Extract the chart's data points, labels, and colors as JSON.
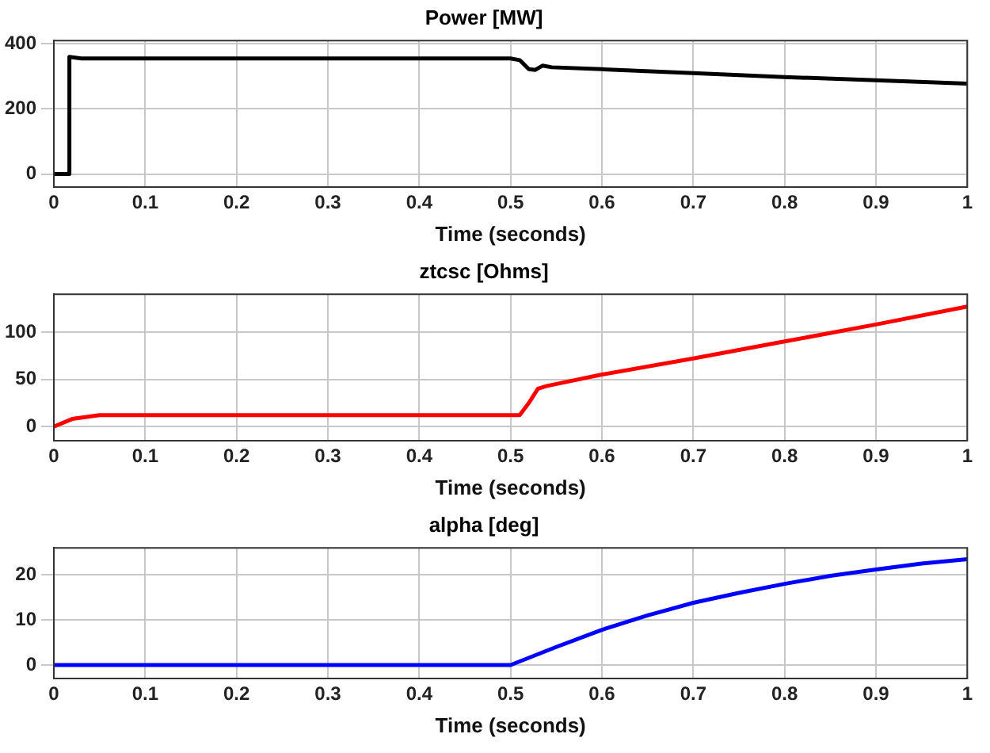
{
  "chart_data": [
    {
      "type": "line",
      "title": "Power [MW]",
      "xlabel": "Time (seconds)",
      "xlim": [
        0,
        1
      ],
      "xticks": [
        0,
        0.1,
        0.2,
        0.3,
        0.4,
        0.5,
        0.6,
        0.7,
        0.8,
        0.9,
        1
      ],
      "ylim": [
        -40,
        410
      ],
      "yticks": [
        0,
        200,
        400
      ],
      "grid": true,
      "marker": "none",
      "line_style": "solid",
      "series": [
        {
          "color": "#000000",
          "x": [
            0,
            0.016,
            0.017,
            0.03,
            0.5,
            0.51,
            0.52,
            0.527,
            0.535,
            0.545,
            0.6,
            0.7,
            0.8,
            0.9,
            1.0
          ],
          "values": [
            0,
            0,
            360,
            355,
            355,
            350,
            322,
            320,
            333,
            328,
            322,
            310,
            298,
            288,
            278
          ]
        }
      ]
    },
    {
      "type": "line",
      "title": "ztcsc [Ohms]",
      "xlabel": "Time (seconds)",
      "xlim": [
        0,
        1
      ],
      "xticks": [
        0,
        0.1,
        0.2,
        0.3,
        0.4,
        0.5,
        0.6,
        0.7,
        0.8,
        0.9,
        1
      ],
      "ylim": [
        -15,
        140
      ],
      "yticks": [
        0,
        50,
        100
      ],
      "grid": true,
      "marker": "none",
      "line_style": "solid",
      "series": [
        {
          "color": "#ff0000",
          "x": [
            0,
            0.02,
            0.05,
            0.5,
            0.51,
            0.52,
            0.53,
            0.54,
            0.6,
            0.7,
            0.8,
            0.9,
            1.0
          ],
          "values": [
            0,
            8,
            12,
            12,
            12,
            25,
            40,
            43,
            55,
            72,
            90,
            108,
            127
          ]
        }
      ]
    },
    {
      "type": "line",
      "title": "alpha [deg]",
      "xlabel": "Time (seconds)",
      "xlim": [
        0,
        1
      ],
      "xticks": [
        0,
        0.1,
        0.2,
        0.3,
        0.4,
        0.5,
        0.6,
        0.7,
        0.8,
        0.9,
        1
      ],
      "ylim": [
        -3,
        26
      ],
      "yticks": [
        0,
        10,
        20
      ],
      "grid": true,
      "marker": "none",
      "line_style": "solid",
      "series": [
        {
          "color": "#0000ff",
          "x": [
            0,
            0.5,
            0.55,
            0.6,
            0.65,
            0.7,
            0.75,
            0.8,
            0.85,
            0.9,
            0.95,
            1.0
          ],
          "values": [
            0,
            0,
            4,
            7.8,
            11,
            13.8,
            16,
            18,
            19.8,
            21.2,
            22.5,
            23.5
          ]
        }
      ]
    }
  ]
}
